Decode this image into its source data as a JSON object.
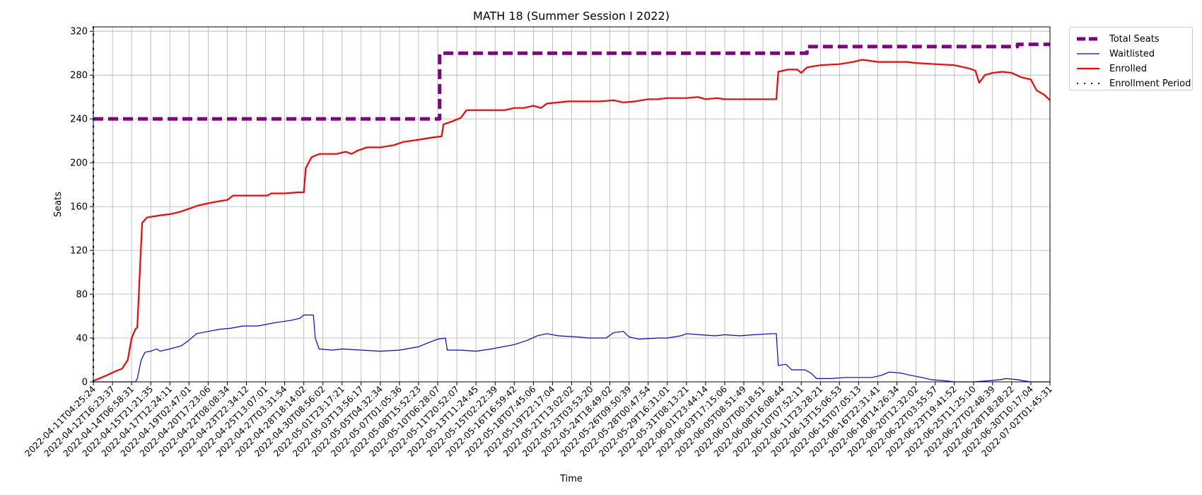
{
  "chart_data": {
    "type": "line",
    "title": "MATH 18 (Summer Session I 2022)",
    "xlabel": "Time",
    "ylabel": "Seats",
    "ylim": [
      0,
      324
    ],
    "yticks": [
      0,
      40,
      80,
      120,
      160,
      200,
      240,
      280,
      320
    ],
    "grid": true,
    "legend_position": "outside-top-right",
    "x_tick_labels": [
      "2022-04-11T04:25:24",
      "2022-04-12T16:23:37",
      "2022-04-14T06:58:31",
      "2022-04-15T21:21:35",
      "2022-04-17T12:24:11",
      "2022-04-19T02:47:01",
      "2022-04-20T17:23:06",
      "2022-04-22T08:08:34",
      "2022-04-23T22:34:12",
      "2022-04-25T13:07:01",
      "2022-04-27T03:31:54",
      "2022-04-28T18:14:02",
      "2022-04-30T08:56:02",
      "2022-05-01T23:17:21",
      "2022-05-03T13:56:17",
      "2022-05-05T04:32:34",
      "2022-05-07T01:05:36",
      "2022-05-08T15:52:23",
      "2022-05-10T06:28:07",
      "2022-05-11T20:52:07",
      "2022-05-13T11:24:45",
      "2022-05-15T02:22:39",
      "2022-05-16T16:59:42",
      "2022-05-18T07:45:06",
      "2022-05-19T22:17:04",
      "2022-05-21T13:02:02",
      "2022-05-23T03:53:20",
      "2022-05-24T18:49:02",
      "2022-05-26T09:50:39",
      "2022-05-28T00:47:54",
      "2022-05-29T16:31:01",
      "2022-05-31T08:13:21",
      "2022-06-01T23:44:14",
      "2022-06-03T17:15:06",
      "2022-06-05T08:51:49",
      "2022-06-07T00:18:51",
      "2022-06-08T16:08:44",
      "2022-06-10T07:52:11",
      "2022-06-11T23:28:21",
      "2022-06-13T15:06:53",
      "2022-06-15T07:05:13",
      "2022-06-16T22:31:41",
      "2022-06-18T14:26:34",
      "2022-06-20T12:32:02",
      "2022-06-22T03:55:57",
      "2022-06-23T19:41:52",
      "2022-06-25T11:25:10",
      "2022-06-27T02:48:39",
      "2022-06-28T18:28:22",
      "2022-06-30T10:17:04",
      "2022-07-02T01:45:31"
    ],
    "series": [
      {
        "name": "Total Seats",
        "color": "#800080",
        "style": "dashed",
        "points": [
          [
            0,
            240
          ],
          [
            18.1,
            240
          ],
          [
            18.1,
            300
          ],
          [
            37.3,
            300
          ],
          [
            37.3,
            306
          ],
          [
            48.3,
            306
          ],
          [
            48.3,
            308
          ],
          [
            50,
            308
          ]
        ]
      },
      {
        "name": "Waitlisted",
        "color": "#0000ff",
        "style": "solid",
        "points": [
          [
            0,
            0
          ],
          [
            2.2,
            0
          ],
          [
            2.3,
            3
          ],
          [
            2.5,
            20
          ],
          [
            2.7,
            27
          ],
          [
            3,
            28
          ],
          [
            3.3,
            30
          ],
          [
            3.5,
            28
          ],
          [
            4,
            30
          ],
          [
            4.6,
            33
          ],
          [
            5,
            38
          ],
          [
            5.4,
            44
          ],
          [
            6,
            46
          ],
          [
            6.6,
            48
          ],
          [
            7.2,
            49
          ],
          [
            7.8,
            51
          ],
          [
            8.6,
            51
          ],
          [
            9.5,
            54
          ],
          [
            10.3,
            56
          ],
          [
            10.8,
            58
          ],
          [
            11,
            61
          ],
          [
            11.5,
            61
          ],
          [
            11.6,
            40
          ],
          [
            11.8,
            30
          ],
          [
            12.5,
            29
          ],
          [
            13,
            30
          ],
          [
            14,
            29
          ],
          [
            15,
            28
          ],
          [
            16,
            29
          ],
          [
            17,
            32
          ],
          [
            17.4,
            35
          ],
          [
            18,
            39
          ],
          [
            18.4,
            40
          ],
          [
            18.5,
            29
          ],
          [
            19.2,
            29
          ],
          [
            20,
            28
          ],
          [
            20.8,
            30
          ],
          [
            22,
            34
          ],
          [
            22.7,
            38
          ],
          [
            23.2,
            42
          ],
          [
            23.7,
            44
          ],
          [
            24.3,
            42
          ],
          [
            25.3,
            41
          ],
          [
            25.9,
            40
          ],
          [
            26.8,
            40
          ],
          [
            27.2,
            45
          ],
          [
            27.7,
            46
          ],
          [
            28,
            41
          ],
          [
            28.5,
            39
          ],
          [
            29.5,
            40
          ],
          [
            30,
            40
          ],
          [
            30.7,
            42
          ],
          [
            31,
            44
          ],
          [
            31.7,
            43
          ],
          [
            32.5,
            42
          ],
          [
            33,
            43
          ],
          [
            33.8,
            42
          ],
          [
            34.5,
            43
          ],
          [
            35.5,
            44
          ],
          [
            35.7,
            44
          ],
          [
            35.8,
            15
          ],
          [
            36.2,
            16
          ],
          [
            36.5,
            11
          ],
          [
            37.2,
            11
          ],
          [
            37.5,
            8
          ],
          [
            37.8,
            3
          ],
          [
            38.5,
            3
          ],
          [
            39.3,
            4
          ],
          [
            40.7,
            4
          ],
          [
            41.2,
            6
          ],
          [
            41.6,
            9
          ],
          [
            42.2,
            8
          ],
          [
            42.7,
            6
          ],
          [
            43.3,
            4
          ],
          [
            43.8,
            2
          ],
          [
            44.5,
            1
          ],
          [
            45,
            0
          ],
          [
            46,
            0
          ],
          [
            46.8,
            1
          ],
          [
            47.4,
            2
          ],
          [
            47.7,
            3
          ],
          [
            48.3,
            2
          ],
          [
            48.6,
            1
          ],
          [
            49,
            0
          ],
          [
            50,
            0
          ]
        ]
      },
      {
        "name": "Enrolled",
        "color": "#ff0000",
        "style": "solid",
        "points": [
          [
            0,
            1
          ],
          [
            0.3,
            3
          ],
          [
            0.7,
            6
          ],
          [
            1.2,
            10
          ],
          [
            1.5,
            12
          ],
          [
            1.8,
            20
          ],
          [
            2,
            40
          ],
          [
            2.2,
            48
          ],
          [
            2.3,
            50
          ],
          [
            2.45,
            108
          ],
          [
            2.55,
            145
          ],
          [
            2.8,
            150
          ],
          [
            3.5,
            152
          ],
          [
            4,
            153
          ],
          [
            4.5,
            155
          ],
          [
            5,
            158
          ],
          [
            5.5,
            161
          ],
          [
            6,
            163
          ],
          [
            6.6,
            165
          ],
          [
            7,
            166
          ],
          [
            7.3,
            170
          ],
          [
            8,
            170
          ],
          [
            9.1,
            170
          ],
          [
            9.3,
            172
          ],
          [
            10,
            172
          ],
          [
            10.7,
            173
          ],
          [
            11,
            173
          ],
          [
            11.1,
            195
          ],
          [
            11.4,
            205
          ],
          [
            11.8,
            208
          ],
          [
            12.7,
            208
          ],
          [
            13.2,
            210
          ],
          [
            13.5,
            208
          ],
          [
            13.8,
            211
          ],
          [
            14.3,
            214
          ],
          [
            15,
            214
          ],
          [
            15.7,
            216
          ],
          [
            16.2,
            219
          ],
          [
            17,
            221
          ],
          [
            17.7,
            223
          ],
          [
            18.2,
            224
          ],
          [
            18.3,
            235
          ],
          [
            18.8,
            238
          ],
          [
            19.2,
            241
          ],
          [
            19.5,
            248
          ],
          [
            20.5,
            248
          ],
          [
            21.5,
            248
          ],
          [
            22,
            250
          ],
          [
            22.5,
            250
          ],
          [
            23,
            252
          ],
          [
            23.4,
            250
          ],
          [
            23.7,
            254
          ],
          [
            24.3,
            255
          ],
          [
            24.8,
            256
          ],
          [
            25.3,
            256
          ],
          [
            26.5,
            256
          ],
          [
            27.2,
            257
          ],
          [
            27.7,
            255
          ],
          [
            28.3,
            256
          ],
          [
            29,
            258
          ],
          [
            29.5,
            258
          ],
          [
            30,
            259
          ],
          [
            31,
            259
          ],
          [
            31.6,
            260
          ],
          [
            32,
            258
          ],
          [
            32.6,
            259
          ],
          [
            33,
            258
          ],
          [
            34,
            258
          ],
          [
            35,
            258
          ],
          [
            35.7,
            258
          ],
          [
            35.8,
            283
          ],
          [
            36.3,
            285
          ],
          [
            36.8,
            285
          ],
          [
            37,
            282
          ],
          [
            37.3,
            287
          ],
          [
            38,
            289
          ],
          [
            39,
            290
          ],
          [
            39.7,
            292
          ],
          [
            40.2,
            294
          ],
          [
            41,
            292
          ],
          [
            42,
            292
          ],
          [
            42.5,
            292
          ],
          [
            43,
            291
          ],
          [
            44,
            290
          ],
          [
            45,
            289
          ],
          [
            45.8,
            286
          ],
          [
            46.1,
            284
          ],
          [
            46.3,
            273
          ],
          [
            46.6,
            280
          ],
          [
            47,
            282
          ],
          [
            47.5,
            283
          ],
          [
            48,
            282
          ],
          [
            48.5,
            278
          ],
          [
            49,
            276
          ],
          [
            49.3,
            266
          ],
          [
            49.7,
            262
          ],
          [
            50,
            257
          ]
        ]
      },
      {
        "name": "Enrollment Period",
        "color": "#0000ff",
        "style": "dotted",
        "points": [
          [
            0,
            0
          ],
          [
            0,
            324
          ]
        ]
      }
    ]
  }
}
